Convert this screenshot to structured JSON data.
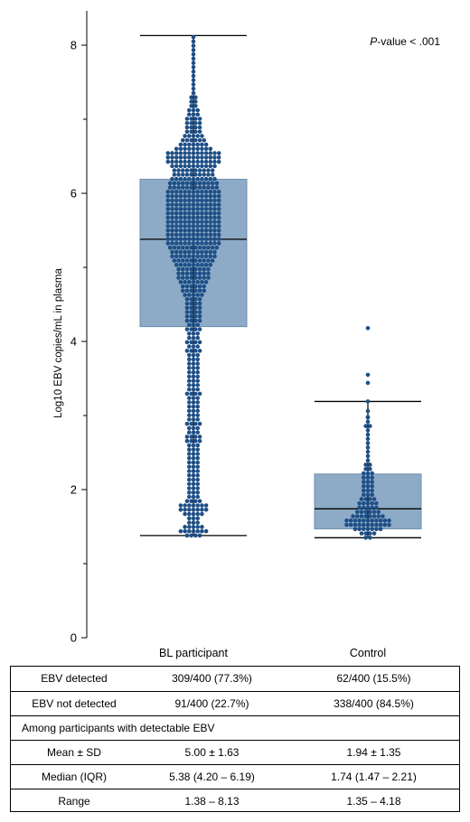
{
  "chart_data": {
    "type": "box",
    "ylabel": "Log10 EBV copies/mL in plasma",
    "ylim": [
      0,
      8.5
    ],
    "yticks": [
      0,
      2,
      4,
      6,
      8
    ],
    "categories": [
      "BL participant",
      "Control"
    ],
    "annotation": {
      "italic": "P",
      "rest": "-value < .001"
    },
    "colors": {
      "box": "#8daac6",
      "box_edge": "#6f8fae",
      "point": "#1e4f86",
      "line": "#000000"
    },
    "boxes": [
      {
        "name": "BL participant",
        "min": 1.38,
        "q1": 4.2,
        "median": 5.38,
        "q3": 6.19,
        "max": 8.13
      },
      {
        "name": "Control",
        "min": 1.35,
        "q1": 1.47,
        "median": 1.74,
        "q3": 2.21,
        "max": 3.19
      }
    ],
    "outliers": [
      {
        "category": "Control",
        "values": [
          4.18,
          3.55,
          3.44
        ]
      }
    ]
  },
  "table": {
    "rows": [
      {
        "label": "EBV detected",
        "bl": "309/400 (77.3%)",
        "control": "62/400 (15.5%)"
      },
      {
        "label": "EBV not detected",
        "bl": "91/400 (22.7%)",
        "control": "338/400 (84.5%)"
      },
      {
        "span": "Among participants with detectable EBV"
      },
      {
        "label": "Mean ± SD",
        "bl": "5.00 ± 1.63",
        "control": "1.94 ± 1.35"
      },
      {
        "label": "Median (IQR)",
        "bl": "5.38 (4.20 – 6.19)",
        "control": "1.74 (1.47 – 2.21)"
      },
      {
        "label": "Range",
        "bl": "1.38 – 8.13",
        "control": "1.35 – 4.18"
      }
    ]
  }
}
